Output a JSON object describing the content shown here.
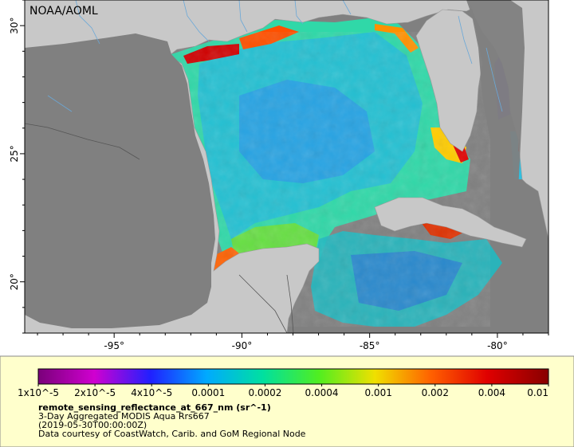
{
  "map": {
    "credit_label": "NOAA/AOML",
    "lon_ticks": [
      {
        "lon": -95,
        "label": "-95°"
      },
      {
        "lon": -90,
        "label": "-90°"
      },
      {
        "lon": -85,
        "label": "-85°"
      },
      {
        "lon": -80,
        "label": "-80°"
      }
    ],
    "lat_ticks": [
      {
        "lat": 30,
        "label": "30°"
      },
      {
        "lat": 25,
        "label": "25°"
      },
      {
        "lat": 20,
        "label": "20°"
      }
    ],
    "lon_range": [
      -98.5,
      -78.0
    ],
    "lat_range": [
      18.0,
      31.0
    ],
    "colors": {
      "ocean_nodata": "#808080",
      "land": "#c8c8c8",
      "rivers": "#6aa8d8",
      "borders": "#555555"
    }
  },
  "legend": {
    "colorbar_ticks": [
      "1x10^-5",
      "2x10^-5",
      "4x10^-5",
      "0.0001",
      "0.0002",
      "0.0004",
      "0.001",
      "0.002",
      "0.004",
      "0.01"
    ],
    "colorbar_colors": [
      "#7a007a",
      "#d000d0",
      "#2020ff",
      "#00aaff",
      "#00e0a0",
      "#50ee20",
      "#f0e000",
      "#ff6000",
      "#e00000",
      "#880000"
    ],
    "variable_title": "remote_sensing_reflectance_at_667_nm (sr^-1)",
    "product_line": "3-Day Aggregated MODIS Aqua Rrs667",
    "time_line": "(2019-05-30T00:00:00Z)",
    "credit_line": "Data courtesy of CoastWatch, Carib. and GoM Regional Node",
    "background": "#ffffcc"
  }
}
